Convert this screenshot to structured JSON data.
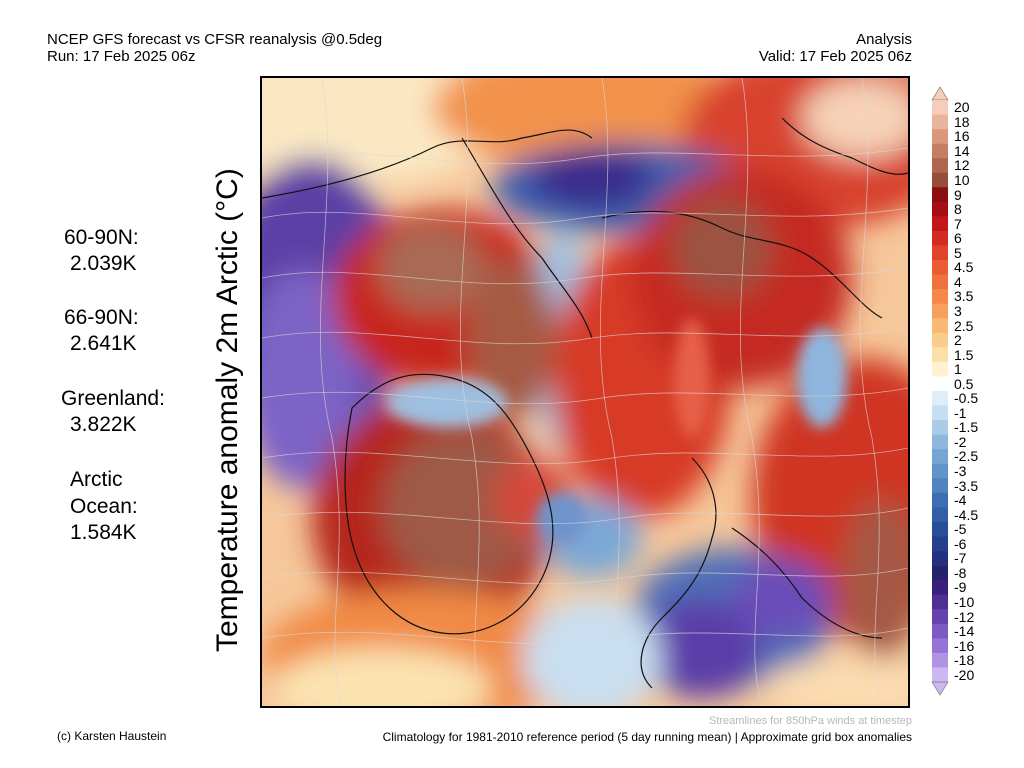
{
  "header": {
    "title_line1": "NCEP GFS forecast vs CFSR reanalysis @0.5deg",
    "title_line2": "Run: 17 Feb 2025 06z",
    "right_line1": "Analysis",
    "right_line2": "Valid: 17 Feb 2025 06z"
  },
  "vertical_title": "Temperature anomaly 2m Arctic (°C)",
  "stats": [
    {
      "label": "60-90N:",
      "value": "2.039K"
    },
    {
      "label": "66-90N:",
      "value": "2.641K"
    },
    {
      "label": "Greenland:",
      "value": "3.822K"
    },
    {
      "label": "Arctic",
      "label2": "Ocean:",
      "value": "1.584K"
    }
  ],
  "colorbar": {
    "labels": [
      "20",
      "18",
      "16",
      "14",
      "12",
      "10",
      "9",
      "8",
      "7",
      "6",
      "5",
      "4.5",
      "4",
      "3.5",
      "3",
      "2.5",
      "2",
      "1.5",
      "1",
      "0.5",
      "-0.5",
      "-1",
      "-1.5",
      "-2",
      "-2.5",
      "-3",
      "-3.5",
      "-4",
      "-4.5",
      "-5",
      "-6",
      "-7",
      "-8",
      "-9",
      "-10",
      "-12",
      "-14",
      "-16",
      "-18",
      "-20"
    ],
    "colors": [
      "#f5cdb9",
      "#e8b49c",
      "#d9987e",
      "#c57d63",
      "#b0654f",
      "#9a4c3b",
      "#8a0f10",
      "#a50e12",
      "#c0181a",
      "#d32a22",
      "#e2432c",
      "#ea5a33",
      "#f0723e",
      "#f4894b",
      "#f7a05d",
      "#f9b873",
      "#fbcd8b",
      "#fbe1a7",
      "#fdf1cf",
      "#ffffff",
      "#deedf8",
      "#c6def2",
      "#a9cbe8",
      "#8fb7dd",
      "#77a5d3",
      "#6294c9",
      "#4f82bf",
      "#3f6fb3",
      "#335fa7",
      "#2a4f9a",
      "#263f8c",
      "#23307d",
      "#25226c",
      "#3a1f7f",
      "#4f2e95",
      "#6642ad",
      "#7c59c3",
      "#9573d5",
      "#b193e5",
      "#cdb6f2"
    ]
  },
  "footer": {
    "credit": "(c) Karsten Haustein",
    "streamline_note": "Streamlines for 850hPa winds at timestep",
    "climatology": "Climatology for 1981-2010 reference period (5 day running mean) | Approximate grid box anomalies"
  }
}
